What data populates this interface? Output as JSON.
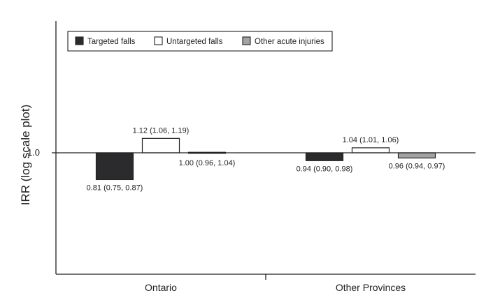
{
  "chart_data": {
    "type": "bar",
    "title": "",
    "xlabel": "",
    "ylabel": "IRR (log scale plot)",
    "yscale": "log",
    "baseline": 1.0,
    "baseline_tick_label": "1.0",
    "ylim": [
      0.7,
      1.6
    ],
    "grid": false,
    "legend_position": "top-left",
    "categories": [
      "Ontario",
      "Other Provinces"
    ],
    "series": [
      {
        "name": "Targeted falls",
        "color": "#2b2b2e",
        "values": [
          0.81,
          0.94
        ],
        "labels": [
          "0.81 (0.75, 0.87)",
          "0.94 (0.90, 0.98)"
        ]
      },
      {
        "name": "Untargeted falls",
        "color": "#ffffff",
        "values": [
          1.12,
          1.04
        ],
        "labels": [
          "1.12 (1.06, 1.19)",
          "1.04 (1.01, 1.06)"
        ]
      },
      {
        "name": "Other acute injuries",
        "color": "#a3a3a6",
        "values": [
          1.0,
          0.96
        ],
        "labels": [
          "1.00 (0.96, 1.04)",
          "0.96 (0.94, 0.97)"
        ]
      }
    ]
  }
}
